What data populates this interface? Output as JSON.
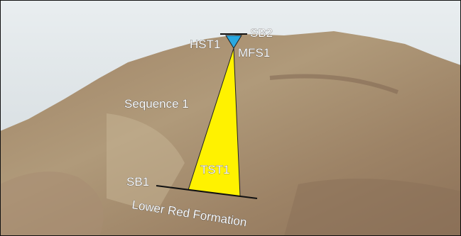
{
  "annotations": {
    "sb2": "SB2",
    "hst1": "HST1",
    "mfs1": "MFS1",
    "sequence": "Sequence 1",
    "tst1": "TST1",
    "sb1": "SB1",
    "formation": "Lower Red Formation"
  }
}
